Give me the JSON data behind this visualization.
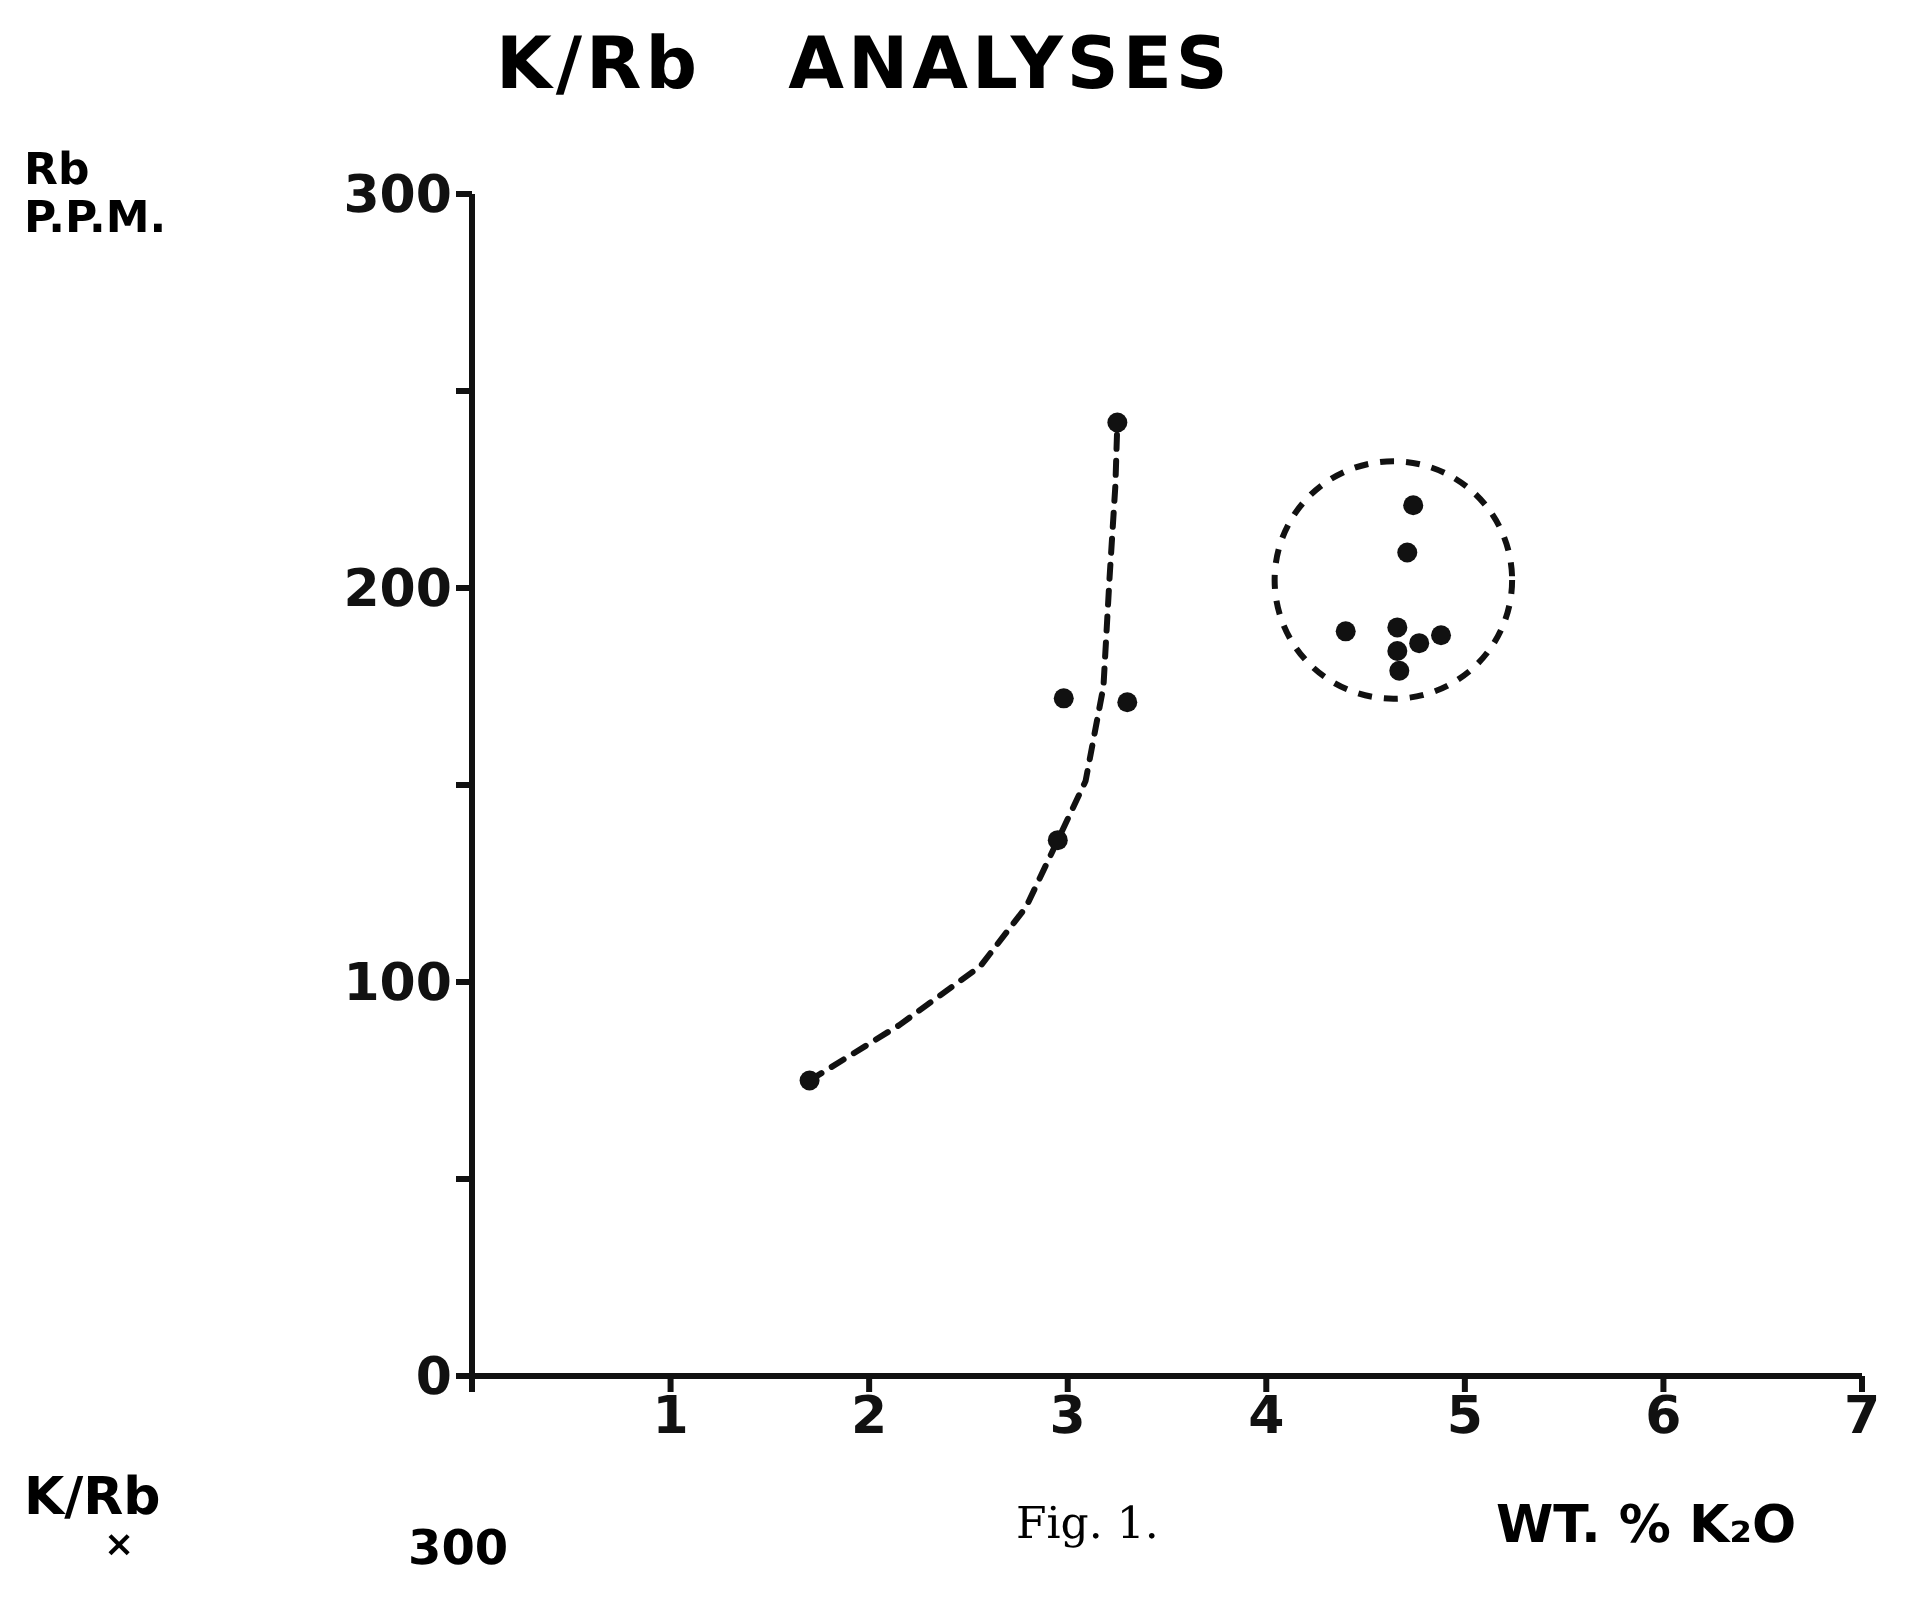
{
  "chart_data": {
    "type": "scatter",
    "title": "K/Rb   ANALYSES",
    "xlabel": "WT. % K₂O",
    "ylabel": "Rb\nP.P.M.",
    "annotations": [
      "Fig. 1.",
      "K/Rb",
      "×",
      "300"
    ],
    "xlim": [
      0,
      7
    ],
    "xticks": [
      {
        "value": 0,
        "label": null
      },
      1,
      2,
      3,
      4,
      5,
      6,
      7
    ],
    "ylim": [
      0,
      300
    ],
    "yticks": [
      0,
      {
        "value": 50,
        "label": null
      },
      100,
      {
        "value": 150,
        "label": null
      },
      200,
      {
        "value": 250,
        "label": null
      },
      300
    ],
    "grid": false,
    "marker": "circle",
    "series": [
      {
        "type": "line",
        "line_style": "dashed",
        "marker": "none",
        "color": "#111111",
        "x": [
          1.7,
          2.15,
          2.56,
          2.79,
          2.95,
          3.09,
          3.18,
          3.21,
          3.24,
          3.25
        ],
        "values": [
          75,
          89,
          104,
          119,
          136,
          151,
          175,
          202,
          226,
          242
        ]
      },
      {
        "color": "#111111",
        "x": [
          1.7,
          2.95,
          2.98,
          3.3,
          3.25
        ],
        "values": [
          75,
          136,
          172,
          171,
          242
        ]
      },
      {
        "color": "#111111",
        "x": [
          4.74,
          4.71,
          4.4,
          4.66,
          4.66,
          4.67,
          4.77,
          4.88
        ],
        "values": [
          221,
          209,
          189,
          190,
          184,
          179,
          186,
          188
        ]
      }
    ]
  }
}
